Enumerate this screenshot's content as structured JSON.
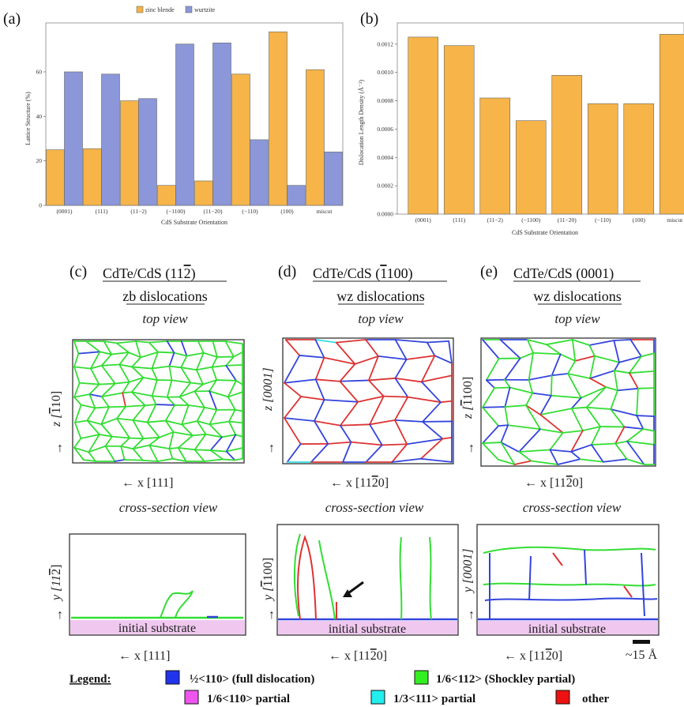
{
  "chart_data": [
    {
      "panel": "(a)",
      "type": "bar",
      "categories": [
        "(0001)",
        "(111)",
        "(11−2)",
        "(−1100)",
        "(11−20)",
        "(−110)",
        "(100)",
        "miscut"
      ],
      "series": [
        {
          "name": "zinc blende",
          "color": "#f6b449",
          "values": [
            25,
            25.5,
            47,
            9,
            11,
            59,
            78,
            61
          ]
        },
        {
          "name": "wurtzite",
          "color": "#8b97d9",
          "values": [
            60,
            59,
            48,
            72.5,
            73,
            29.5,
            9,
            24
          ]
        }
      ],
      "xlabel": "CdS Substrate Orientation",
      "ylabel": "Lattice Structure (%)",
      "yticks": [
        "0",
        "20",
        "40",
        "60"
      ],
      "ylim": [
        0,
        82
      ],
      "legend": "top-center"
    },
    {
      "panel": "(b)",
      "type": "bar",
      "categories": [
        "(0001)",
        "(111)",
        "(11−2)",
        "(−1100)",
        "(11−20)",
        "(−110)",
        "(100)",
        "miscut"
      ],
      "series": [
        {
          "color": "#f6b449",
          "values": [
            0.00125,
            0.00119,
            0.00082,
            0.00066,
            0.00098,
            0.00078,
            0.00078,
            0.00127
          ]
        }
      ],
      "xlabel": "CdS Substrate Orientation",
      "ylabel": "Dislocation Length Density (Å⁻²)",
      "yticks": [
        "0.0000",
        "0.0002",
        "0.0004",
        "0.0006",
        "0.0008",
        "0.0010",
        "0.0012"
      ],
      "ylim": [
        0,
        0.00135
      ]
    }
  ],
  "panels": {
    "c": {
      "label": "(c)",
      "title": "CdTe/CdS (11",
      "title_bar": "2",
      "title_end": ")",
      "subtitle": "zb dislocations",
      "top_view": "top view",
      "z_axis": "z [",
      "z_bar": "1",
      "z_end": "10]",
      "x_axis": "← x [111]",
      "cross_view": "cross-section view",
      "y_axis": "y [11",
      "y_bar": "2",
      "y_end": "]",
      "substrate": "initial substrate",
      "x_axis_bottom": "← x [111]"
    },
    "d": {
      "label": "(d)",
      "title": "CdTe/CdS (",
      "title_bar": "1",
      "title_end": "100)",
      "subtitle": "wz dislocations",
      "top_view": "top view",
      "z_axis": "z [0001]",
      "x_axis": "← x [11",
      "x_bar": "2",
      "x_end": "0]",
      "cross_view": "cross-section view",
      "y_axis": "y [",
      "y_bar": "1",
      "y_end": "100]",
      "substrate": "initial substrate"
    },
    "e": {
      "label": "(e)",
      "title": "CdTe/CdS (0001)",
      "subtitle": "wz dislocations",
      "top_view": "top view",
      "z_axis": "z [",
      "z_bar": "1",
      "z_end": "100]",
      "x_axis": "← x [11",
      "x_bar": "2",
      "x_end": "0]",
      "cross_view": "cross-section view",
      "y_axis": "y [0001]",
      "substrate": "initial substrate",
      "scale": "~15 Å"
    }
  },
  "legend": {
    "title": "Legend:",
    "items": [
      {
        "label": "½<110> (full dislocation)",
        "color": "#2233ee"
      },
      {
        "label": "1/6<112> (Shockley partial)",
        "color": "#33ee22"
      },
      {
        "label": "1/6<110> partial",
        "color": "#ee55ee"
      },
      {
        "label": "1/3<111> partial",
        "color": "#22eeee"
      },
      {
        "label": "other",
        "color": "#ee1111"
      }
    ]
  },
  "colors": {
    "blue": "#3344dd",
    "green": "#33dd33",
    "red": "#dd3333",
    "cyan": "#33dddd",
    "substrate": "#f0c8ef"
  }
}
